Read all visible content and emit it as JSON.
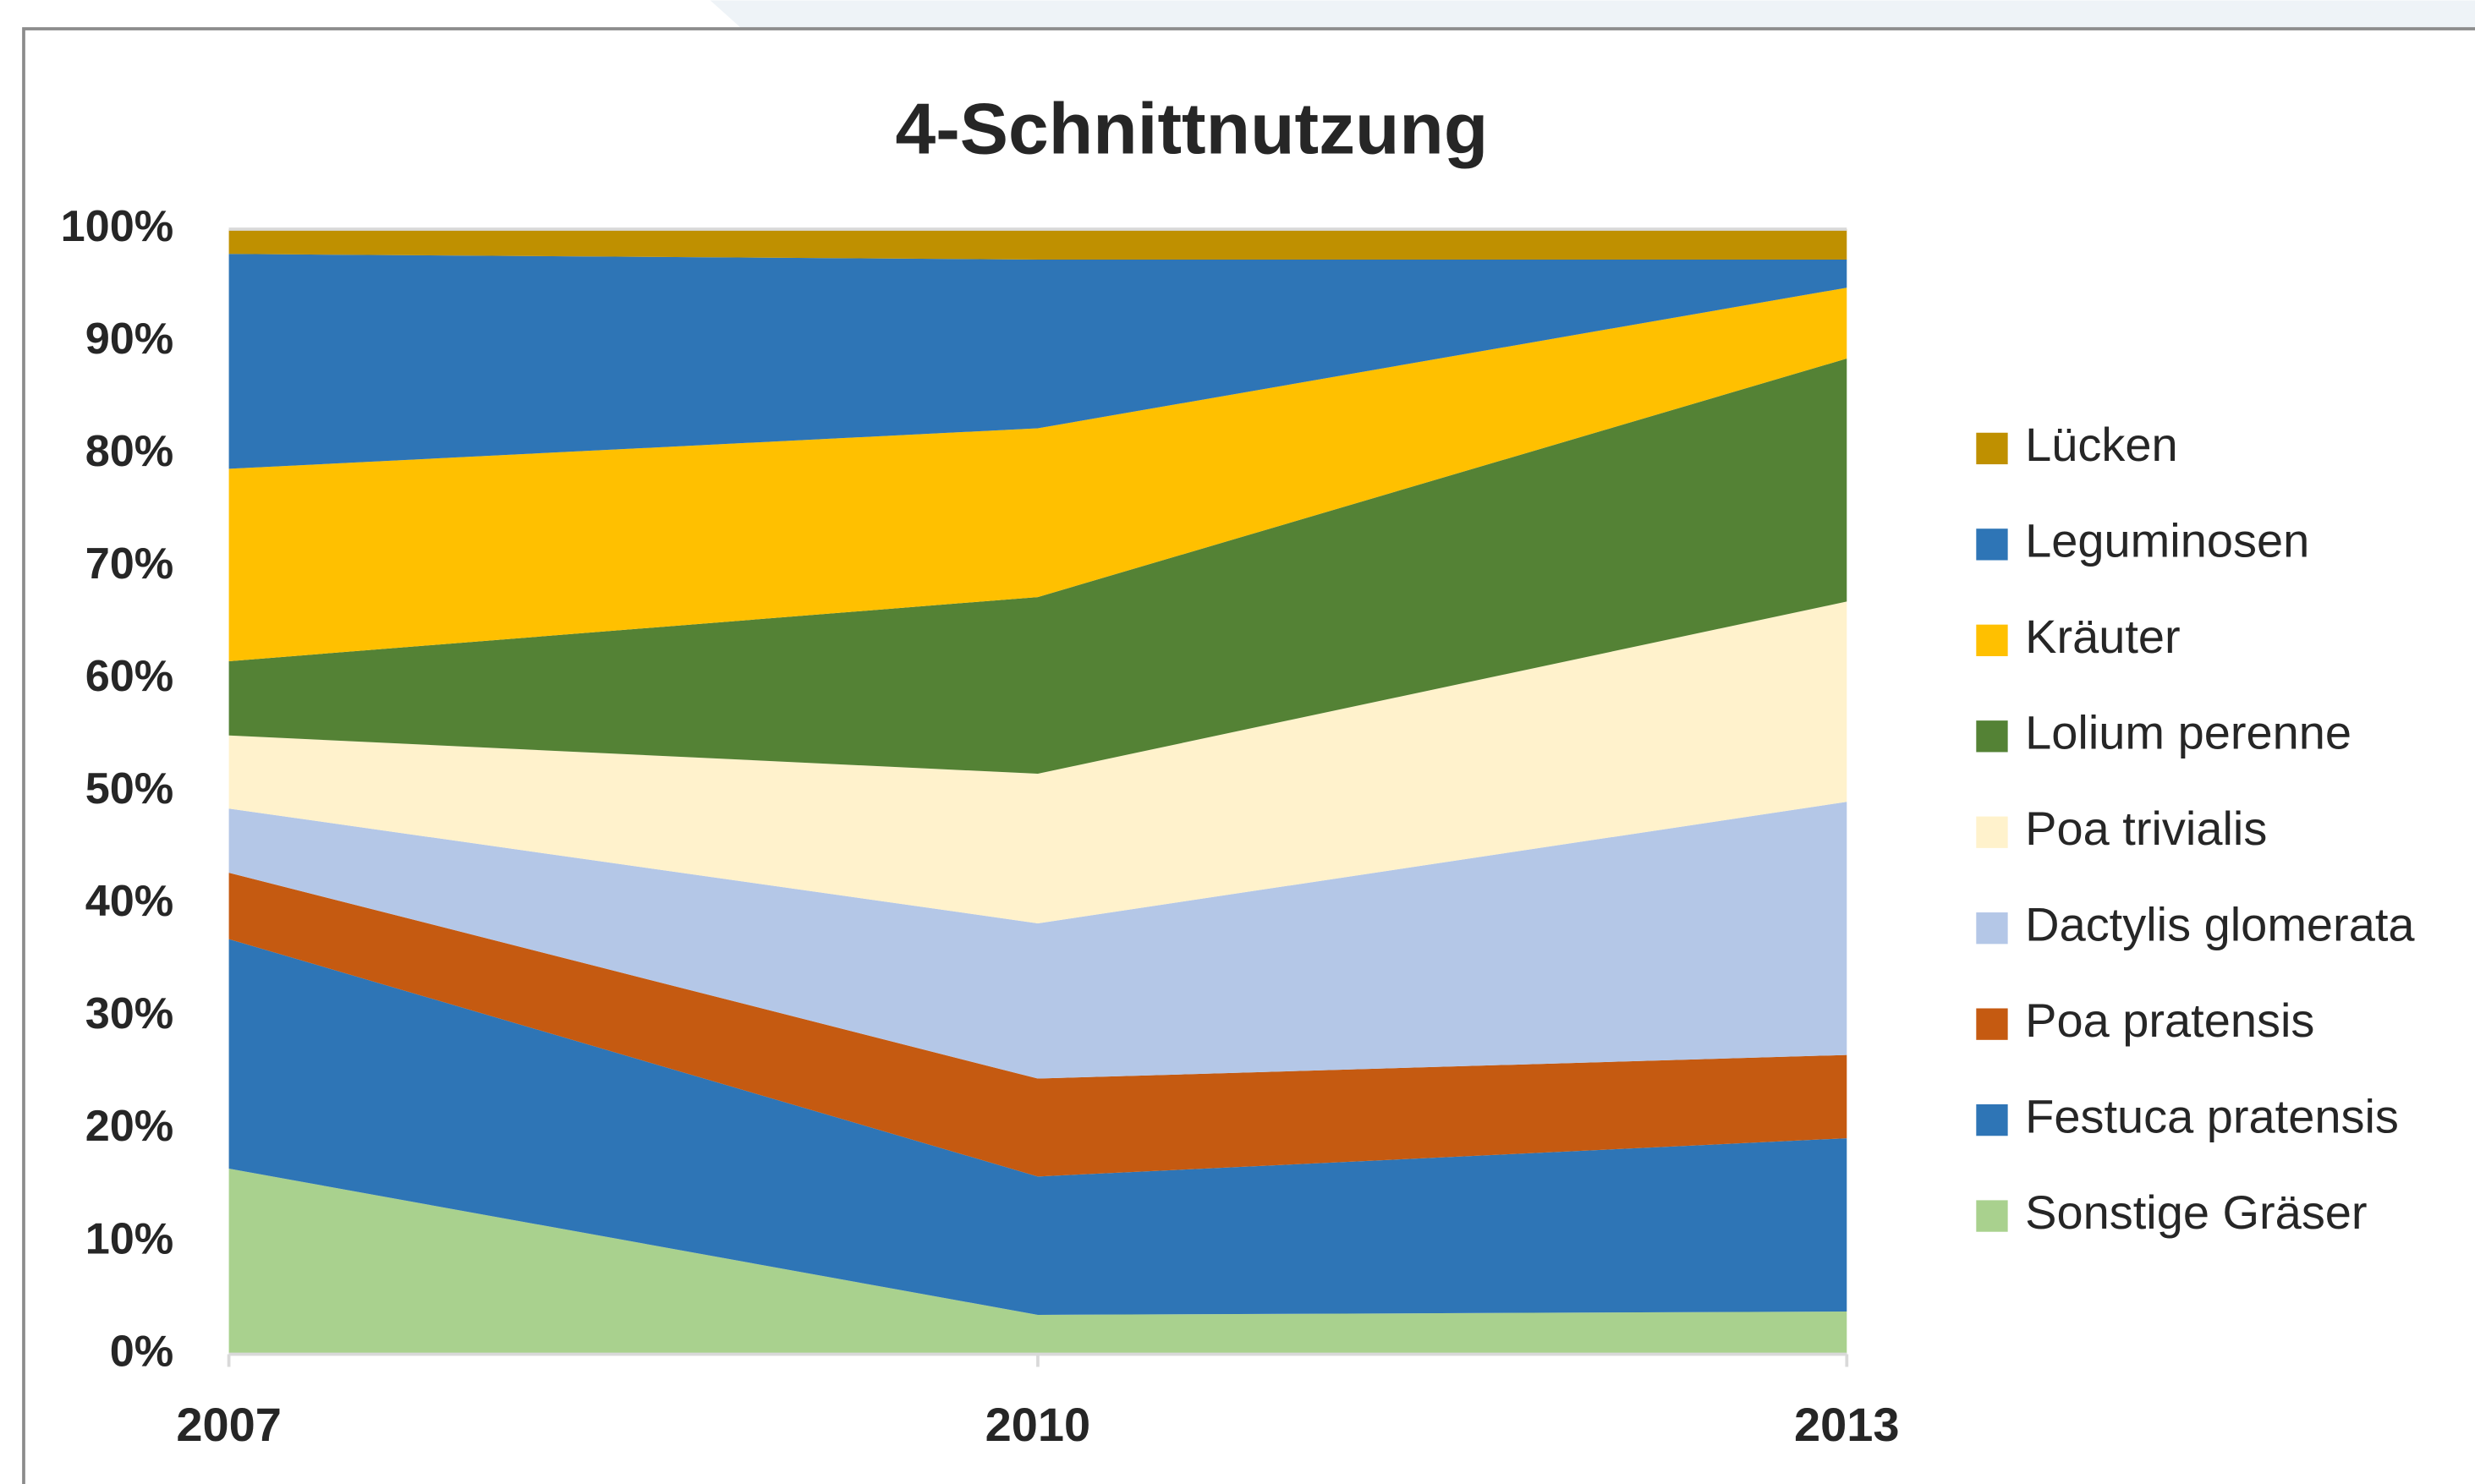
{
  "chart_data": {
    "type": "stacked_area",
    "title": "4-Schnittnutzung",
    "categories": [
      "2007",
      "2010",
      "2013"
    ],
    "series": [
      {
        "name": "Sonstige Gräser",
        "color": "#a9d18e",
        "values": [
          16.5,
          3.5,
          3.8
        ]
      },
      {
        "name": "Festuca pratensis",
        "color": "#2e75b6",
        "values": [
          20.4,
          12.3,
          15.4
        ]
      },
      {
        "name": "Poa pratensis",
        "color": "#c55a11",
        "values": [
          5.9,
          8.7,
          7.4
        ]
      },
      {
        "name": "Dactylis glomerata",
        "color": "#b4c7e7",
        "values": [
          5.7,
          13.8,
          22.5
        ]
      },
      {
        "name": "Poa trivialis",
        "color": "#fff2cc",
        "values": [
          6.5,
          13.3,
          17.8
        ]
      },
      {
        "name": "Lolium perenne",
        "color": "#548235",
        "values": [
          6.6,
          15.7,
          21.6
        ]
      },
      {
        "name": "Kräuter",
        "color": "#ffc000",
        "values": [
          17.1,
          15.0,
          6.3
        ]
      },
      {
        "name": "Leguminosen",
        "color": "#2e75b6",
        "values": [
          19.1,
          15.0,
          2.5
        ]
      },
      {
        "name": "Lücken",
        "color": "#bf9000",
        "values": [
          2.2,
          2.7,
          2.7
        ]
      }
    ],
    "ylim": [
      0,
      100
    ],
    "yticks": [
      {
        "value": 0,
        "label": "0%"
      },
      {
        "value": 10,
        "label": "10%"
      },
      {
        "value": 20,
        "label": "20%"
      },
      {
        "value": 30,
        "label": "30%"
      },
      {
        "value": 40,
        "label": "40%"
      },
      {
        "value": 50,
        "label": "50%"
      },
      {
        "value": 60,
        "label": "60%"
      },
      {
        "value": 70,
        "label": "70%"
      },
      {
        "value": 80,
        "label": "80%"
      },
      {
        "value": 90,
        "label": "90%"
      },
      {
        "value": 100,
        "label": "100%"
      }
    ],
    "legend": "right"
  }
}
